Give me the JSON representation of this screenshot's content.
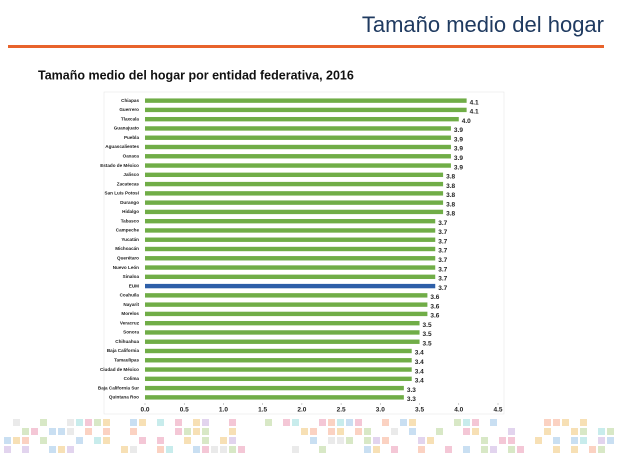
{
  "header": {
    "title": "Tamaño medio del hogar"
  },
  "chart_data": {
    "type": "hbar",
    "title": "Tamaño medio del hogar por entidad federativa, 2016",
    "categories": [
      "Chiapas",
      "Guerrero",
      "Tlaxcala",
      "Guanajuato",
      "Puebla",
      "Aguascalientes",
      "Oaxaca",
      "Estado de México",
      "Jalisco",
      "Zacatecas",
      "San Luis Potosí",
      "Durango",
      "Hidalgo",
      "Tabasco",
      "Campeche",
      "Yucatán",
      "Michoacán",
      "Querétaro",
      "Nuevo León",
      "Sinaloa",
      "EUM",
      "Coahuila",
      "Nayarit",
      "Morelos",
      "Veracruz",
      "Sonora",
      "Chihuahua",
      "Baja California",
      "Tamaulipas",
      "Ciudad de México",
      "Colima",
      "Baja California Sur",
      "Quintana Roo"
    ],
    "values": [
      4.1,
      4.1,
      4.0,
      3.9,
      3.9,
      3.9,
      3.9,
      3.9,
      3.8,
      3.8,
      3.8,
      3.8,
      3.8,
      3.7,
      3.7,
      3.7,
      3.7,
      3.7,
      3.7,
      3.7,
      3.7,
      3.6,
      3.6,
      3.6,
      3.5,
      3.5,
      3.5,
      3.4,
      3.4,
      3.4,
      3.4,
      3.3,
      3.3
    ],
    "value_labels": [
      "4.1",
      "4.1",
      "4.0",
      "3.9",
      "3.9",
      "3.9",
      "3.9",
      "3.9",
      "3.8",
      "3.8",
      "3.8",
      "3.8",
      "3.8",
      "3.7",
      "3.7",
      "3.7",
      "3.7",
      "3.7",
      "3.7",
      "3.7",
      "3.7",
      "3.6",
      "3.6",
      "3.6",
      "3.5",
      "3.5",
      "3.5",
      "3.4",
      "3.4",
      "3.4",
      "3.4",
      "3.3",
      "3.3"
    ],
    "colors": [
      "#70ad47",
      "#70ad47",
      "#70ad47",
      "#70ad47",
      "#70ad47",
      "#70ad47",
      "#70ad47",
      "#70ad47",
      "#70ad47",
      "#70ad47",
      "#70ad47",
      "#70ad47",
      "#70ad47",
      "#70ad47",
      "#70ad47",
      "#70ad47",
      "#70ad47",
      "#70ad47",
      "#70ad47",
      "#70ad47",
      "#2e5fa8",
      "#70ad47",
      "#70ad47",
      "#70ad47",
      "#70ad47",
      "#70ad47",
      "#70ad47",
      "#70ad47",
      "#70ad47",
      "#70ad47",
      "#70ad47",
      "#70ad47",
      "#70ad47"
    ],
    "xlim": [
      0,
      4.5
    ],
    "xticks": [
      {
        "value": 0,
        "label": "0.0"
      },
      0.5,
      {
        "value": 1,
        "label": "1.0"
      },
      1.5,
      {
        "value": 2,
        "label": "2.0"
      },
      2.5,
      {
        "value": 3,
        "label": "3.0"
      },
      3.5,
      {
        "value": 4,
        "label": "4.0"
      },
      4.5
    ],
    "grid": false
  }
}
